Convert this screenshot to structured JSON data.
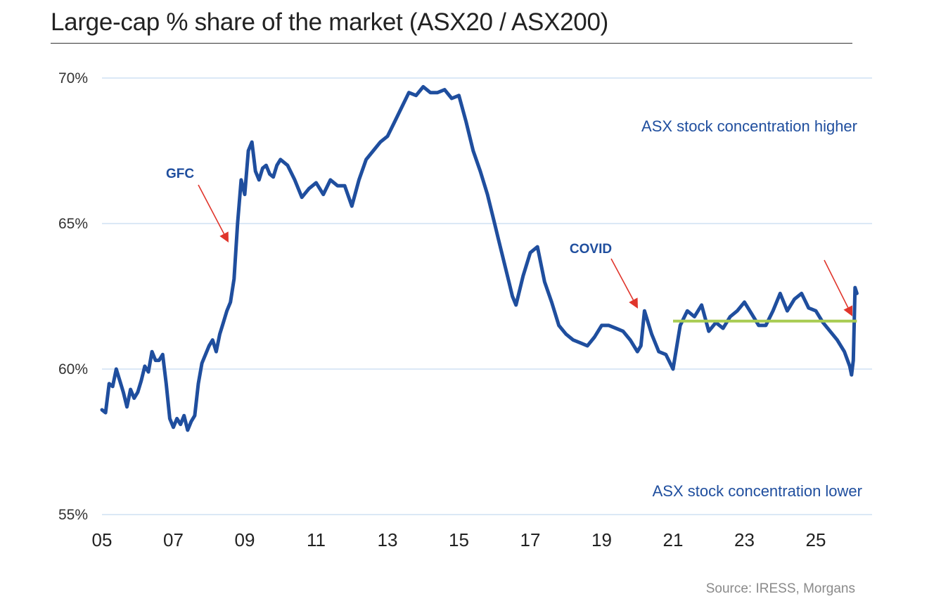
{
  "title": "Large-cap % share of the market (ASX20 / ASX200)",
  "source": "Source: IRESS, Morgans",
  "colors": {
    "line": "#1f4e9e",
    "grid": "#cfe0f4",
    "arrow": "#e0352b",
    "average": "#a8cc52",
    "annotation": "#1f4e9e"
  },
  "chart_data": {
    "type": "line",
    "title": "Large-cap % share of the market (ASX20 / ASX200)",
    "xlabel": "",
    "ylabel": "",
    "xlim": [
      2005,
      2026.4
    ],
    "ylim": [
      55,
      70
    ],
    "x_ticks": [
      {
        "value": 2005,
        "label": "05"
      },
      {
        "value": 2007,
        "label": "07"
      },
      {
        "value": 2009,
        "label": "09"
      },
      {
        "value": 2011,
        "label": "11"
      },
      {
        "value": 2013,
        "label": "13"
      },
      {
        "value": 2015,
        "label": "15"
      },
      {
        "value": 2017,
        "label": "17"
      },
      {
        "value": 2019,
        "label": "19"
      },
      {
        "value": 2021,
        "label": "21"
      },
      {
        "value": 2023,
        "label": "23"
      },
      {
        "value": 2025,
        "label": "25"
      }
    ],
    "y_ticks": [
      {
        "value": 55,
        "label": "55%"
      },
      {
        "value": 60,
        "label": "60%"
      },
      {
        "value": 65,
        "label": "65%"
      },
      {
        "value": 70,
        "label": "70%"
      }
    ],
    "grid": true,
    "legend": "none",
    "series": [
      {
        "x": [
          2005.0,
          2005.1,
          2005.2,
          2005.3,
          2005.4,
          2005.5,
          2005.6,
          2005.7,
          2005.8,
          2005.9,
          2006.0,
          2006.1,
          2006.2,
          2006.3,
          2006.4,
          2006.5,
          2006.6,
          2006.7,
          2006.8,
          2006.9,
          2007.0,
          2007.1,
          2007.2,
          2007.3,
          2007.4,
          2007.5,
          2007.6,
          2007.7,
          2007.8,
          2007.9,
          2008.0,
          2008.1,
          2008.2,
          2008.3,
          2008.4,
          2008.5,
          2008.6,
          2008.7,
          2008.8,
          2008.9,
          2009.0,
          2009.1,
          2009.2,
          2009.3,
          2009.4,
          2009.5,
          2009.6,
          2009.7,
          2009.8,
          2009.9,
          2010.0,
          2010.2,
          2010.4,
          2010.6,
          2010.8,
          2011.0,
          2011.2,
          2011.4,
          2011.6,
          2011.8,
          2012.0,
          2012.2,
          2012.4,
          2012.6,
          2012.8,
          2013.0,
          2013.2,
          2013.4,
          2013.6,
          2013.8,
          2014.0,
          2014.2,
          2014.4,
          2014.6,
          2014.8,
          2015.0,
          2015.2,
          2015.4,
          2015.6,
          2015.8,
          2016.0,
          2016.1,
          2016.2,
          2016.3,
          2016.4,
          2016.5,
          2016.6,
          2016.8,
          2017.0,
          2017.2,
          2017.4,
          2017.6,
          2017.8,
          2018.0,
          2018.2,
          2018.4,
          2018.6,
          2018.8,
          2019.0,
          2019.2,
          2019.4,
          2019.6,
          2019.8,
          2020.0,
          2020.1,
          2020.2,
          2020.4,
          2020.6,
          2020.8,
          2021.0,
          2021.2,
          2021.4,
          2021.6,
          2021.8,
          2022.0,
          2022.2,
          2022.4,
          2022.6,
          2022.8,
          2023.0,
          2023.2,
          2023.4,
          2023.6,
          2023.8,
          2024.0,
          2024.2,
          2024.4,
          2024.6,
          2024.8,
          2025.0,
          2025.2,
          2025.4,
          2025.6,
          2025.8,
          2025.95,
          2026.0,
          2026.05,
          2026.1,
          2026.15
        ],
        "y": [
          58.6,
          58.5,
          59.5,
          59.4,
          60.0,
          59.6,
          59.2,
          58.7,
          59.3,
          59.0,
          59.2,
          59.6,
          60.1,
          59.9,
          60.6,
          60.3,
          60.3,
          60.5,
          59.5,
          58.3,
          58.0,
          58.3,
          58.1,
          58.4,
          57.9,
          58.2,
          58.4,
          59.5,
          60.2,
          60.5,
          60.8,
          61.0,
          60.6,
          61.2,
          61.6,
          62.0,
          62.3,
          63.1,
          65.0,
          66.5,
          66.0,
          67.5,
          67.8,
          66.8,
          66.5,
          66.9,
          67.0,
          66.7,
          66.6,
          67.0,
          67.2,
          67.0,
          66.5,
          65.9,
          66.2,
          66.4,
          66.0,
          66.5,
          66.3,
          66.3,
          65.6,
          66.5,
          67.2,
          67.5,
          67.8,
          68.0,
          68.5,
          69.0,
          69.5,
          69.4,
          69.7,
          69.5,
          69.5,
          69.6,
          69.3,
          69.4,
          68.5,
          67.5,
          66.8,
          66.0,
          65.0,
          64.5,
          64.0,
          63.5,
          63.0,
          62.5,
          62.2,
          63.2,
          64.0,
          64.2,
          63.0,
          62.3,
          61.5,
          61.2,
          61.0,
          60.9,
          60.8,
          61.1,
          61.5,
          61.5,
          61.4,
          61.3,
          61.0,
          60.6,
          60.8,
          62.0,
          61.2,
          60.6,
          60.5,
          60.0,
          61.5,
          62.0,
          61.8,
          62.2,
          61.3,
          61.6,
          61.4,
          61.8,
          62.0,
          62.3,
          61.9,
          61.5,
          61.5,
          62.0,
          62.6,
          62.0,
          62.4,
          62.6,
          62.1,
          62.0,
          61.6,
          61.3,
          61.0,
          60.6,
          60.1,
          59.8,
          60.3,
          62.8,
          62.6
        ]
      }
    ],
    "average_line": {
      "value": 61.65,
      "x_start": 2021.0,
      "x_end": 2026.15
    },
    "annotations": [
      {
        "text": "GFC"
      },
      {
        "text": "COVID"
      },
      {
        "text": "ASX stock concentration higher"
      },
      {
        "text": "ASX stock concentration lower"
      }
    ]
  }
}
